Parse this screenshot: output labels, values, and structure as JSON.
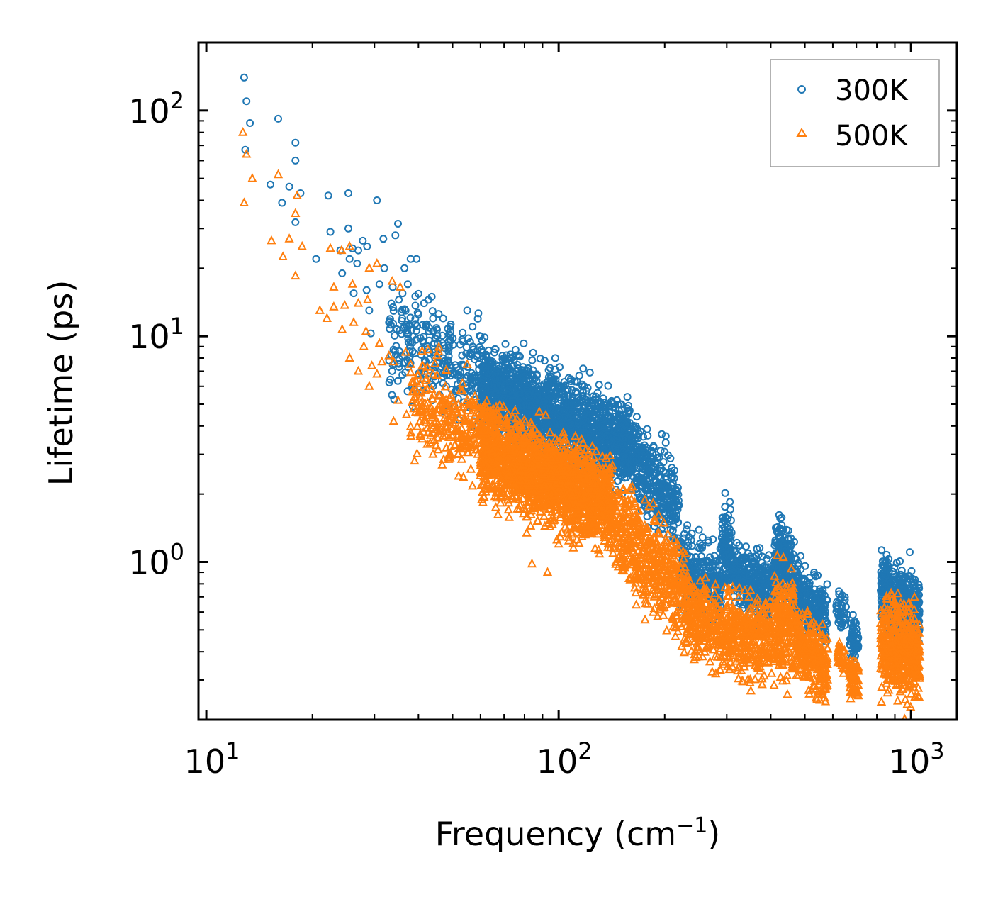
{
  "chart_data": {
    "type": "scatter",
    "title": "",
    "xlabel": "Frequency (cm",
    "xlabel_sup": "−1",
    "xlabel_tail": ")",
    "ylabel": "Lifetime (ps)",
    "xscale": "log",
    "yscale": "log",
    "xlim": [
      9.5,
      1350
    ],
    "ylim": [
      0.2,
      200
    ],
    "x_major_ticks": [
      {
        "value": 10,
        "base": "10",
        "exp": "1"
      },
      {
        "value": 100,
        "base": "10",
        "exp": "2"
      },
      {
        "value": 1000,
        "base": "10",
        "exp": "3"
      }
    ],
    "y_major_ticks": [
      {
        "value": 1,
        "base": "10",
        "exp": "0"
      },
      {
        "value": 10,
        "base": "10",
        "exp": "1"
      },
      {
        "value": 100,
        "base": "10",
        "exp": "2"
      }
    ],
    "legend": {
      "position": "top-right"
    },
    "series": [
      {
        "name": "300K",
        "marker": "circle",
        "color": "#1f77b4",
        "points": [
          [
            12.8,
            140
          ],
          [
            13.0,
            110
          ],
          [
            13.3,
            88
          ],
          [
            12.9,
            67
          ],
          [
            16.0,
            92
          ],
          [
            15.2,
            47
          ],
          [
            16.4,
            39
          ],
          [
            17.2,
            46
          ],
          [
            17.9,
            72
          ],
          [
            17.9,
            60
          ],
          [
            18.5,
            43
          ],
          [
            17.9,
            32
          ],
          [
            22.2,
            42
          ],
          [
            25.3,
            43
          ],
          [
            22.5,
            29
          ],
          [
            20.5,
            22
          ],
          [
            24.0,
            24
          ],
          [
            25.3,
            30
          ],
          [
            27.8,
            26.5
          ],
          [
            28.6,
            25
          ],
          [
            26.0,
            24.5
          ],
          [
            27.0,
            24.0
          ],
          [
            25.5,
            22
          ],
          [
            24.3,
            19
          ],
          [
            26.8,
            21
          ],
          [
            30.5,
            40
          ],
          [
            31.8,
            27
          ],
          [
            35.0,
            31.5
          ],
          [
            34.4,
            28
          ],
          [
            38.0,
            22
          ],
          [
            36.5,
            20
          ],
          [
            39.5,
            22
          ],
          [
            32.0,
            20
          ],
          [
            28.5,
            16
          ],
          [
            26.2,
            15.5
          ],
          [
            31.0,
            17
          ],
          [
            33.8,
            16.5
          ],
          [
            37.3,
            17.0
          ],
          [
            41.5,
            14
          ],
          [
            44.0,
            12
          ],
          [
            47.0,
            12
          ],
          [
            55.0,
            13
          ],
          [
            29.0,
            13
          ],
          [
            35.2,
            14.5
          ],
          [
            29.3,
            10.3
          ],
          [
            40.0,
            12.5
          ],
          [
            36.0,
            12.0
          ],
          [
            42.0,
            11.0
          ],
          [
            48.5,
            10.8
          ],
          [
            33.0,
            11.5
          ],
          [
            38.5,
            10.0
          ],
          [
            60.0,
            10.0
          ],
          [
            57.0,
            9.0
          ],
          [
            53.5,
            9.5
          ],
          [
            70.0,
            8.0
          ],
          [
            65.0,
            7.7
          ],
          [
            95.0,
            6.6
          ],
          [
            82.0,
            7.2
          ],
          [
            110.0,
            5.0
          ],
          [
            140.0,
            4.2
          ]
        ],
        "bands": [
          {
            "fmin": 33,
            "fmax": 60,
            "center_start": 9.5,
            "center_end": 7.0,
            "spread": 0.11,
            "count": 260
          },
          {
            "fmin": 60,
            "fmax": 160,
            "center_start": 6.0,
            "center_end": 3.3,
            "spread": 0.09,
            "count": 1700
          },
          {
            "fmin": 160,
            "fmax": 220,
            "center_start": 3.0,
            "center_end": 1.7,
            "spread": 0.09,
            "count": 340
          },
          {
            "fmin": 220,
            "fmax": 290,
            "center_start": 0.95,
            "center_end": 0.8,
            "spread": 0.08,
            "count": 260
          },
          {
            "fmin": 290,
            "fmax": 310,
            "center_start": 1.2,
            "center_end": 1.1,
            "spread": 0.08,
            "count": 110
          },
          {
            "fmin": 310,
            "fmax": 410,
            "center_start": 0.9,
            "center_end": 0.75,
            "spread": 0.07,
            "count": 300
          },
          {
            "fmin": 410,
            "fmax": 460,
            "center_start": 1.05,
            "center_end": 0.95,
            "spread": 0.08,
            "count": 200
          },
          {
            "fmin": 460,
            "fmax": 580,
            "center_start": 0.78,
            "center_end": 0.55,
            "spread": 0.07,
            "count": 280
          },
          {
            "fmin": 610,
            "fmax": 660,
            "center_start": 0.65,
            "center_end": 0.58,
            "spread": 0.04,
            "count": 40
          },
          {
            "fmin": 670,
            "fmax": 710,
            "center_start": 0.47,
            "center_end": 0.44,
            "spread": 0.05,
            "count": 60
          },
          {
            "fmin": 820,
            "fmax": 1060,
            "center_start": 0.72,
            "center_end": 0.6,
            "spread": 0.08,
            "count": 460
          }
        ]
      },
      {
        "name": "500K",
        "marker": "triangle",
        "color": "#ff7f0e",
        "points": [
          [
            12.7,
            80
          ],
          [
            13.0,
            64
          ],
          [
            13.5,
            50
          ],
          [
            12.8,
            39
          ],
          [
            16.0,
            52
          ],
          [
            18.1,
            42
          ],
          [
            17.9,
            35
          ],
          [
            15.3,
            26.5
          ],
          [
            17.2,
            27
          ],
          [
            16.5,
            22.5
          ],
          [
            18.7,
            25
          ],
          [
            17.9,
            18.5
          ],
          [
            22.5,
            24.5
          ],
          [
            24.2,
            24
          ],
          [
            25.5,
            25
          ],
          [
            21.0,
            13
          ],
          [
            23.0,
            13.5
          ],
          [
            24.7,
            13.7
          ],
          [
            27.0,
            14
          ],
          [
            28.7,
            14.5
          ],
          [
            23.0,
            16.5
          ],
          [
            26.0,
            17
          ],
          [
            29.0,
            20
          ],
          [
            30.5,
            21
          ],
          [
            33.7,
            17.5
          ],
          [
            35.5,
            16.5
          ],
          [
            22.0,
            12.0
          ],
          [
            24.3,
            10.7
          ],
          [
            26.2,
            11.5
          ],
          [
            28.4,
            10.5
          ],
          [
            25.5,
            8.0
          ],
          [
            28.0,
            9.0
          ],
          [
            31.0,
            9.3
          ],
          [
            29.5,
            7.4
          ],
          [
            31.5,
            7.7
          ],
          [
            33.0,
            8.2
          ],
          [
            36.8,
            8.5
          ],
          [
            27.0,
            7.0
          ],
          [
            30.5,
            6.8
          ],
          [
            34.0,
            7.7
          ],
          [
            38.0,
            7.5
          ],
          [
            29.0,
            6.0
          ],
          [
            40.0,
            6.7
          ],
          [
            55.0,
            7.5
          ],
          [
            44.0,
            6.8
          ],
          [
            35.0,
            5.2
          ],
          [
            37.0,
            4.5
          ],
          [
            34.0,
            4.2
          ],
          [
            50.0,
            4.5
          ],
          [
            41.0,
            3.5
          ],
          [
            39.0,
            2.8
          ],
          [
            44.0,
            3.0
          ],
          [
            48.0,
            3.2
          ],
          [
            60.0,
            2.5
          ],
          [
            52.0,
            2.4
          ],
          [
            62.0,
            2.1
          ],
          [
            66.0,
            1.95
          ],
          [
            72.0,
            1.7
          ],
          [
            84.0,
            0.98
          ],
          [
            93.0,
            0.9
          ],
          [
            100.0,
            1.2
          ],
          [
            85.0,
            3.6
          ],
          [
            70.0,
            4.0
          ],
          [
            95.0,
            3.2
          ]
        ],
        "bands": [
          {
            "fmin": 38,
            "fmax": 60,
            "center_start": 5.5,
            "center_end": 3.6,
            "spread": 0.1,
            "count": 240
          },
          {
            "fmin": 60,
            "fmax": 140,
            "center_start": 3.2,
            "center_end": 1.8,
            "spread": 0.1,
            "count": 1600
          },
          {
            "fmin": 140,
            "fmax": 230,
            "center_start": 1.6,
            "center_end": 0.7,
            "spread": 0.11,
            "count": 520
          },
          {
            "fmin": 230,
            "fmax": 300,
            "center_start": 0.6,
            "center_end": 0.48,
            "spread": 0.09,
            "count": 260
          },
          {
            "fmin": 300,
            "fmax": 410,
            "center_start": 0.5,
            "center_end": 0.43,
            "spread": 0.09,
            "count": 320
          },
          {
            "fmin": 410,
            "fmax": 470,
            "center_start": 0.55,
            "center_end": 0.5,
            "spread": 0.11,
            "count": 200
          },
          {
            "fmin": 470,
            "fmax": 580,
            "center_start": 0.46,
            "center_end": 0.33,
            "spread": 0.08,
            "count": 240
          },
          {
            "fmin": 620,
            "fmax": 650,
            "center_start": 0.4,
            "center_end": 0.36,
            "spread": 0.04,
            "count": 40
          },
          {
            "fmin": 670,
            "fmax": 710,
            "center_start": 0.31,
            "center_end": 0.3,
            "spread": 0.04,
            "count": 60
          },
          {
            "fmin": 820,
            "fmax": 1060,
            "center_start": 0.45,
            "center_end": 0.38,
            "spread": 0.1,
            "count": 460
          }
        ]
      }
    ]
  }
}
